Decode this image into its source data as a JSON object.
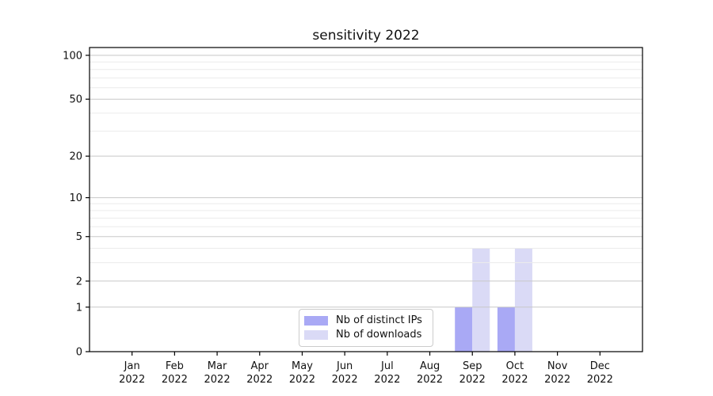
{
  "figure": {
    "title": "sensitivity 2022"
  },
  "chart_data": {
    "type": "bar",
    "title": "sensitivity 2022",
    "categories": [
      "Jan",
      "Feb",
      "Mar",
      "Apr",
      "May",
      "Jun",
      "Jul",
      "Aug",
      "Sep",
      "Oct",
      "Nov",
      "Dec"
    ],
    "category_year": "2022",
    "series": [
      {
        "name": "Nb of distinct IPs",
        "color": "#a9a9f5",
        "values": [
          0,
          0,
          0,
          0,
          0,
          0,
          0,
          0,
          1,
          1,
          0,
          0
        ]
      },
      {
        "name": "Nb of downloads",
        "color": "#dadaf6",
        "values": [
          0,
          0,
          0,
          0,
          0,
          0,
          0,
          0,
          4,
          4,
          0,
          0
        ]
      }
    ],
    "y_axis": {
      "scale": "log1p",
      "ticks": [
        0,
        1,
        2,
        5,
        10,
        20,
        50,
        100
      ],
      "minor_gridlines": [
        3,
        4,
        6,
        7,
        8,
        9,
        30,
        40,
        60,
        70,
        80,
        90
      ],
      "max": 113
    },
    "grid": "horizontal",
    "legend": {
      "position": "bottom-center",
      "entries": [
        "Nb of distinct IPs",
        "Nb of downloads"
      ]
    }
  },
  "colors": {
    "bar_distinct_ips": "#a9a9f5",
    "bar_downloads": "#dadaf6",
    "grid_major": "#c8c8c8",
    "grid_minor": "#ececec",
    "axis": "#000000",
    "text": "#111111",
    "legend_border": "#cccccc",
    "background": "#ffffff"
  }
}
